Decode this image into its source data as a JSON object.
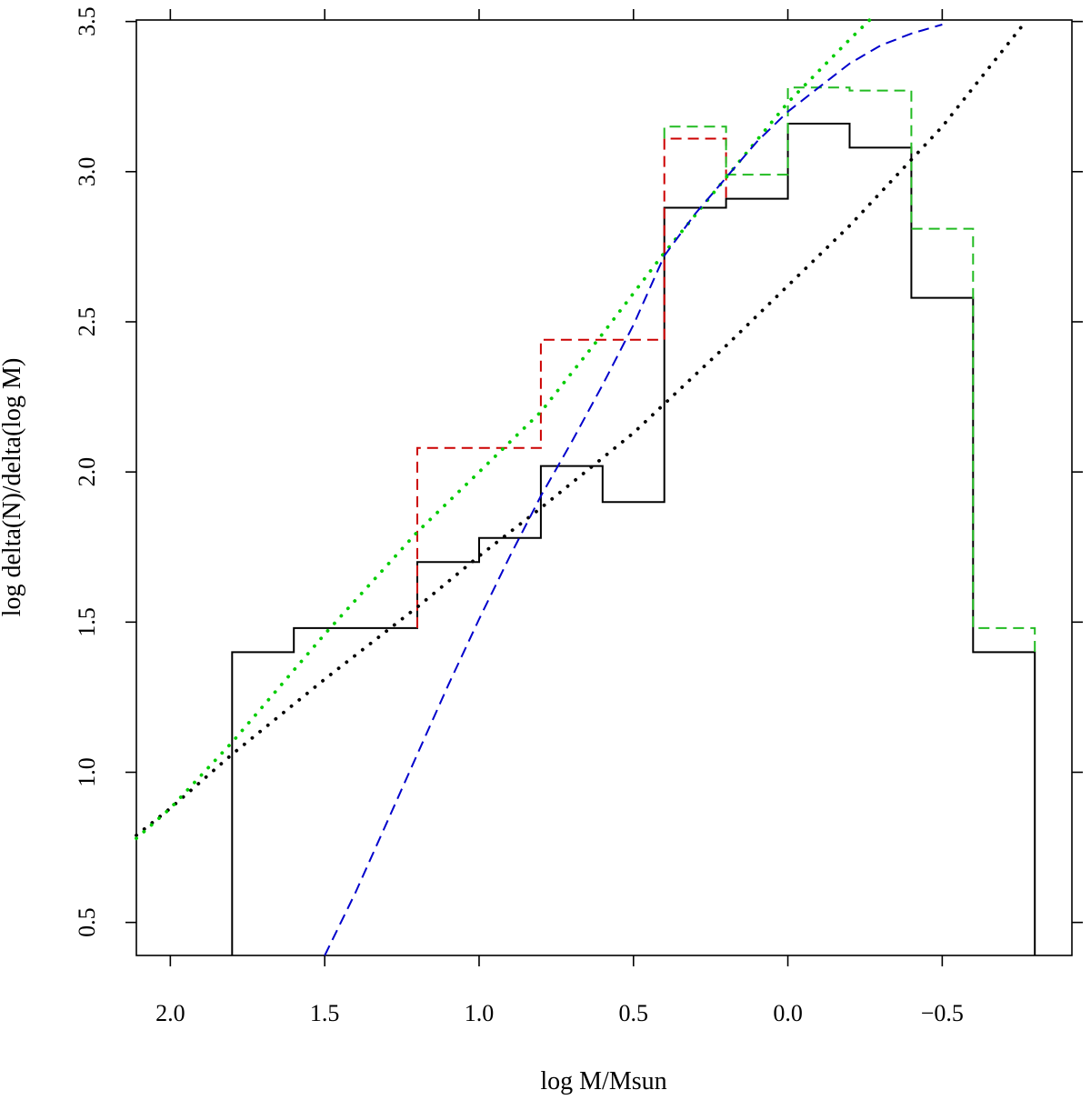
{
  "chart_data": {
    "type": "line",
    "title": "",
    "xlabel": "log M/Msun",
    "ylabel": "log delta(N)/delta(log M)",
    "xlim": [
      2.11,
      -0.92
    ],
    "ylim": [
      0.39,
      3.505
    ],
    "x_ticks": [
      2.0,
      1.5,
      1.0,
      0.5,
      0.0,
      -0.5
    ],
    "x_tick_labels": [
      "2.0",
      "1.5",
      "1.0",
      "0.5",
      "0.0",
      "−0.5"
    ],
    "y_ticks": [
      0.5,
      1.0,
      1.5,
      2.0,
      2.5,
      3.0,
      3.5
    ],
    "y_tick_labels": [
      "0.5",
      "1.0",
      "1.5",
      "2.0",
      "2.5",
      "3.0",
      "3.5"
    ],
    "grid": false,
    "series": [
      {
        "name": "histogram-black-solid",
        "style": "step",
        "color": "#000000",
        "dash": "solid",
        "x": [
          1.8,
          1.8,
          1.6,
          1.6,
          1.2,
          1.2,
          1.0,
          1.0,
          0.8,
          0.8,
          0.6,
          0.6,
          0.4,
          0.4,
          0.2,
          0.2,
          0.0,
          0.0,
          -0.2,
          -0.2,
          -0.4,
          -0.4,
          -0.6,
          -0.6,
          -0.8,
          -0.8
        ],
        "y": [
          0.39,
          1.4,
          1.4,
          1.48,
          1.48,
          1.7,
          1.7,
          1.78,
          1.78,
          2.02,
          2.02,
          1.9,
          1.9,
          2.88,
          2.88,
          2.91,
          2.91,
          3.16,
          3.16,
          3.08,
          3.08,
          2.58,
          2.58,
          1.4,
          1.4,
          0.39
        ]
      },
      {
        "name": "histogram-red-dashed",
        "style": "step",
        "color": "#cc0000",
        "dash": "dashed",
        "x": [
          1.2,
          1.2,
          0.8,
          0.8,
          0.4,
          0.4,
          0.2,
          0.2
        ],
        "y": [
          1.48,
          2.08,
          2.08,
          2.44,
          2.44,
          3.11,
          3.11,
          2.91
        ]
      },
      {
        "name": "histogram-green-dashed",
        "style": "step",
        "color": "#22bb22",
        "dash": "dashed",
        "x": [
          0.4,
          0.4,
          0.2,
          0.2,
          0.0,
          0.0,
          -0.2,
          -0.2,
          -0.4,
          -0.4,
          -0.6,
          -0.6,
          -0.8,
          -0.8
        ],
        "y": [
          3.11,
          3.15,
          3.15,
          2.99,
          2.99,
          3.28,
          3.28,
          3.27,
          3.27,
          2.81,
          2.81,
          1.48,
          1.48,
          1.4
        ]
      },
      {
        "name": "fit-black-dotted",
        "style": "line",
        "color": "#000000",
        "dash": "dotted",
        "x": [
          2.11,
          2.0,
          1.8,
          1.5,
          1.2,
          1.0,
          0.8,
          0.5,
          0.2,
          0.0,
          -0.2,
          -0.5,
          -0.77
        ],
        "y": [
          0.79,
          0.88,
          1.06,
          1.31,
          1.55,
          1.72,
          1.88,
          2.13,
          2.42,
          2.62,
          2.82,
          3.15,
          3.5
        ]
      },
      {
        "name": "fit-green-dotted",
        "style": "line",
        "color": "#00cc00",
        "dash": "dotted",
        "x": [
          2.11,
          2.0,
          1.8,
          1.5,
          1.2,
          1.0,
          0.8,
          0.6,
          0.4,
          0.2,
          0.0,
          -0.2,
          -0.27
        ],
        "y": [
          0.78,
          0.88,
          1.1,
          1.46,
          1.8,
          2.0,
          2.2,
          2.46,
          2.73,
          2.98,
          3.23,
          3.44,
          3.51
        ]
      },
      {
        "name": "fit-blue-dashed",
        "style": "line",
        "color": "#0000cc",
        "dash": "dashed",
        "x": [
          1.5,
          1.4,
          1.3,
          1.2,
          1.1,
          1.0,
          0.9,
          0.8,
          0.7,
          0.6,
          0.5,
          0.4,
          0.3,
          0.2,
          0.1,
          0.0,
          -0.1,
          -0.2,
          -0.3,
          -0.4,
          -0.5
        ],
        "y": [
          0.39,
          0.6,
          0.83,
          1.06,
          1.29,
          1.51,
          1.72,
          1.92,
          2.1,
          2.29,
          2.49,
          2.72,
          2.86,
          2.98,
          3.1,
          3.2,
          3.28,
          3.36,
          3.42,
          3.46,
          3.49
        ]
      }
    ]
  }
}
